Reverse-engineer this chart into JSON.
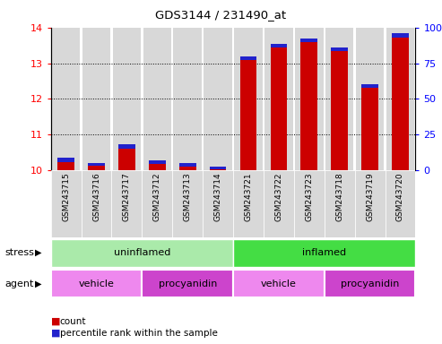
{
  "title": "GDS3144 / 231490_at",
  "samples": [
    "GSM243715",
    "GSM243716",
    "GSM243717",
    "GSM243712",
    "GSM243713",
    "GSM243714",
    "GSM243721",
    "GSM243722",
    "GSM243723",
    "GSM243718",
    "GSM243719",
    "GSM243720"
  ],
  "red_values": [
    10.35,
    10.2,
    10.72,
    10.27,
    10.2,
    10.1,
    13.2,
    13.55,
    13.7,
    13.45,
    12.42,
    13.83
  ],
  "blue_values": [
    0.12,
    0.08,
    0.12,
    0.1,
    0.1,
    0.07,
    0.12,
    0.12,
    0.1,
    0.1,
    0.1,
    0.12
  ],
  "ylim_left": [
    10,
    14
  ],
  "yticks_left": [
    10,
    11,
    12,
    13,
    14
  ],
  "ylim_right": [
    0,
    100
  ],
  "yticks_right": [
    0,
    25,
    50,
    75,
    100
  ],
  "yticklabels_right": [
    "0",
    "25",
    "50",
    "75",
    "100%"
  ],
  "bar_width": 0.55,
  "red_color": "#cc0000",
  "blue_color": "#2222cc",
  "background_bar": "#d8d8d8",
  "stress_uninflamed_color": "#aaeaaa",
  "stress_inflamed_color": "#44dd44",
  "agent_vehicle_color": "#ee88ee",
  "agent_procyanidin_color": "#cc44cc",
  "stress_label": "stress",
  "agent_label": "agent",
  "legend_count": "count",
  "legend_percentile": "percentile rank within the sample"
}
